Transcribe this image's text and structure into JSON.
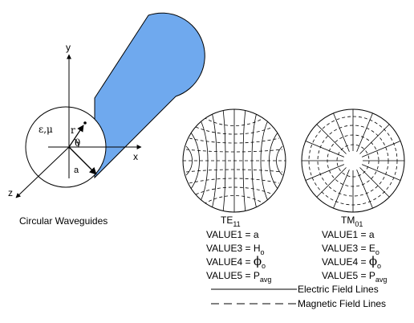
{
  "colors": {
    "cylinder": "#6fa9ee",
    "line": "#000000"
  },
  "axes": {
    "x": "x",
    "y": "y",
    "z": "z"
  },
  "symbols": {
    "material": "ε,μ",
    "radius": "r",
    "angle": "θ",
    "cross_radius": "a"
  },
  "caption": "Circular Waveguides",
  "modes": [
    {
      "name": "TE",
      "sub": "11",
      "values": [
        {
          "label": "VALUE1 = ",
          "sym": "a",
          "sub": ""
        },
        {
          "label": "VALUE3 = ",
          "sym": "H",
          "sub": "o"
        },
        {
          "label": "VALUE4 = ",
          "sym": "ϕ",
          "sub": "o"
        },
        {
          "label": "VALUE5 = ",
          "sym": "P",
          "sub": "avg"
        }
      ]
    },
    {
      "name": "TM",
      "sub": "01",
      "values": [
        {
          "label": "VALUE1 = ",
          "sym": "a",
          "sub": ""
        },
        {
          "label": "VALUE3 = ",
          "sym": "E",
          "sub": "o"
        },
        {
          "label": "VALUE4 = ",
          "sym": "ϕ",
          "sub": "o"
        },
        {
          "label": "VALUE5 = ",
          "sym": "P",
          "sub": "avg"
        }
      ]
    }
  ],
  "legend": {
    "electric": "Electric Field Lines",
    "magnetic": "Magnetic Field Lines"
  }
}
